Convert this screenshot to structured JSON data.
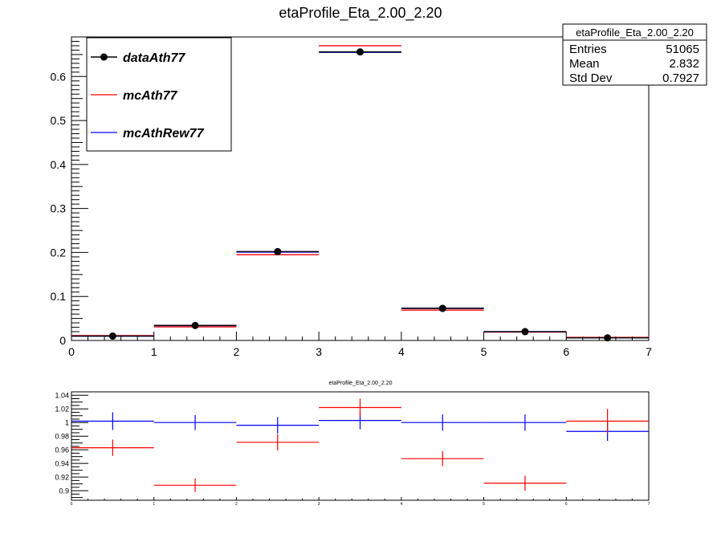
{
  "chart_data": [
    {
      "type": "histogram",
      "title": "etaProfile_Eta_2.00_2.20",
      "xlim": [
        0,
        7
      ],
      "ylim": [
        0,
        0.69
      ],
      "x_ticks": [
        "0",
        "1",
        "2",
        "3",
        "4",
        "5",
        "6",
        "7"
      ],
      "y_ticks": [
        "0",
        "0.1",
        "0.2",
        "0.3",
        "0.4",
        "0.5",
        "0.6"
      ],
      "bins": [
        [
          0,
          1
        ],
        [
          1,
          2
        ],
        [
          2,
          3
        ],
        [
          3,
          4
        ],
        [
          4,
          5
        ],
        [
          5,
          6
        ],
        [
          6,
          7
        ]
      ],
      "series": [
        {
          "name": "dataAth77",
          "color": "#000000",
          "style": "points",
          "values": [
            0.01,
            0.034,
            0.202,
            0.656,
            0.073,
            0.02,
            0.006
          ]
        },
        {
          "name": "mcAth77",
          "color": "#ff0000",
          "style": "hist",
          "values": [
            0.011,
            0.031,
            0.195,
            0.67,
            0.069,
            0.019,
            0.007
          ]
        },
        {
          "name": "mcAthRew77",
          "color": "#0000ff",
          "style": "hist",
          "values": [
            0.01,
            0.034,
            0.201,
            0.655,
            0.073,
            0.02,
            0.006
          ]
        }
      ],
      "legend_placement": "top-left",
      "stats_box": {
        "title": "etaProfile_Eta_2.00_2.20",
        "rows": [
          {
            "label": "Entries",
            "value": "51065"
          },
          {
            "label": "Mean",
            "value": "2.832"
          },
          {
            "label": "Std Dev",
            "value": "0.7927"
          }
        ]
      }
    },
    {
      "type": "histogram",
      "title": "etaProfile_Eta_2.00_2.20",
      "xlim": [
        0,
        7
      ],
      "ylim": [
        0.886,
        1.045
      ],
      "x_ticks": [
        "0",
        "1",
        "2",
        "3",
        "4",
        "5",
        "6",
        "7"
      ],
      "y_ticks": [
        "0.9",
        "0.92",
        "0.94",
        "0.96",
        "0.98",
        "1",
        "1.02",
        "1.04"
      ],
      "bins": [
        [
          0,
          1
        ],
        [
          1,
          2
        ],
        [
          2,
          3
        ],
        [
          3,
          4
        ],
        [
          4,
          5
        ],
        [
          5,
          6
        ],
        [
          6,
          7
        ]
      ],
      "series": [
        {
          "name": "",
          "color": "#0000ff",
          "values": [
            1.002,
            1.0,
            0.996,
            1.003,
            1.0,
            1.0,
            0.987
          ],
          "errors": [
            0.013,
            0.011,
            0.012,
            0.013,
            0.012,
            0.012,
            0.014
          ]
        },
        {
          "name": "",
          "color": "#ff0000",
          "values": [
            0.963,
            0.908,
            0.971,
            1.022,
            0.947,
            0.911,
            1.002
          ],
          "errors": [
            0.012,
            0.01,
            0.012,
            0.013,
            0.011,
            0.011,
            0.018
          ]
        }
      ]
    }
  ]
}
